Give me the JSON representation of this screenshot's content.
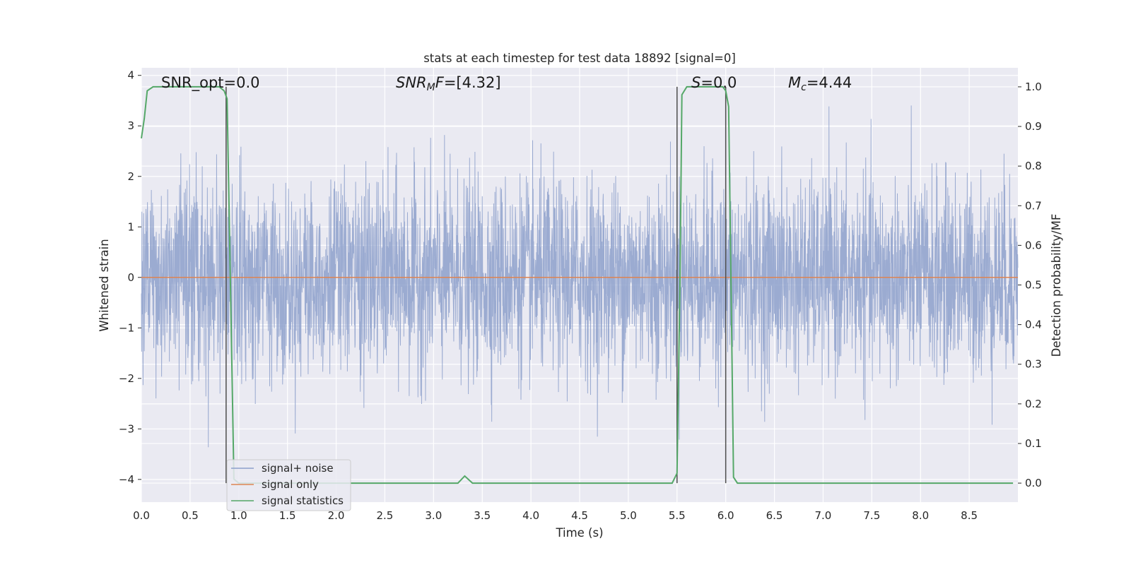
{
  "chart_data": {
    "type": "line",
    "title": "stats at each timestep for test data 18892 [signal=0]",
    "xlabel": "Time (s)",
    "ylabel": "Whitened strain",
    "ylabel_right": "Detection probability/MF",
    "xlim": [
      0,
      9.0
    ],
    "ylim": [
      -4.45,
      4.15
    ],
    "ylim_right": [
      -0.048,
      1.048
    ],
    "xticks": [
      "0.0",
      "0.5",
      "1.0",
      "1.5",
      "2.0",
      "2.5",
      "3.0",
      "3.5",
      "4.0",
      "4.5",
      "5.0",
      "5.5",
      "6.0",
      "6.5",
      "7.0",
      "7.5",
      "8.0",
      "8.5"
    ],
    "yticks": [
      "4",
      "3",
      "2",
      "1",
      "0",
      "−1",
      "−2",
      "−3",
      "−4"
    ],
    "yticks_right": [
      "1.0",
      "0.9",
      "0.8",
      "0.7",
      "0.6",
      "0.5",
      "0.4",
      "0.3",
      "0.2",
      "0.1",
      "0.0"
    ],
    "grid": true,
    "legend_position": "lower-left",
    "annotations": {
      "snr_opt": "SNR_opt=0.0",
      "snr_mf_italic": "SNR",
      "snr_mf_sub": "M",
      "snr_mf_italic2": "F",
      "snr_mf_value": "=[4.32]",
      "s_italic": "S",
      "s_value": "=0.0",
      "mc_italic": "M",
      "mc_sub": "c",
      "mc_value": "=4.44"
    },
    "vertical_lines_x": [
      0.87,
      5.5,
      6.0
    ],
    "series": [
      {
        "name": "signal+ noise",
        "color": "#8da0cb",
        "note_values": "dense whitened-noise trace, amplitude mostly within ±1.4, spikes up to ±3.8",
        "sample_rate": 400
      },
      {
        "name": "signal only",
        "color": "#dd8452",
        "x": [
          0,
          9.0
        ],
        "y": [
          0,
          0
        ]
      },
      {
        "name": "signal statistics",
        "color": "#55a868",
        "axis": "right",
        "x": [
          0.0,
          0.03,
          0.06,
          0.12,
          0.2,
          0.5,
          0.8,
          0.85,
          0.88,
          0.9,
          0.95,
          1.0,
          1.5,
          2.0,
          2.5,
          3.0,
          3.25,
          3.32,
          3.4,
          3.5,
          4.0,
          4.5,
          5.0,
          5.45,
          5.5,
          5.53,
          5.55,
          5.6,
          5.7,
          5.9,
          5.97,
          6.0,
          6.03,
          6.06,
          6.08,
          6.12,
          6.2,
          7.0,
          7.5,
          7.7,
          8.0,
          8.5,
          8.95
        ],
        "y": [
          0.87,
          0.92,
          0.99,
          1.0,
          1.0,
          1.0,
          1.0,
          0.99,
          0.97,
          0.7,
          0.01,
          0.0,
          0.0,
          0.0,
          0.0,
          0.0,
          0.0,
          0.018,
          0.0,
          0.0,
          0.0,
          0.0,
          0.0,
          0.0,
          0.025,
          0.5,
          0.98,
          1.0,
          1.0,
          1.0,
          1.0,
          0.99,
          0.95,
          0.4,
          0.015,
          0.0,
          0.0,
          0.0,
          0.0,
          0.0,
          0.0,
          0.0,
          0.0
        ]
      }
    ]
  }
}
